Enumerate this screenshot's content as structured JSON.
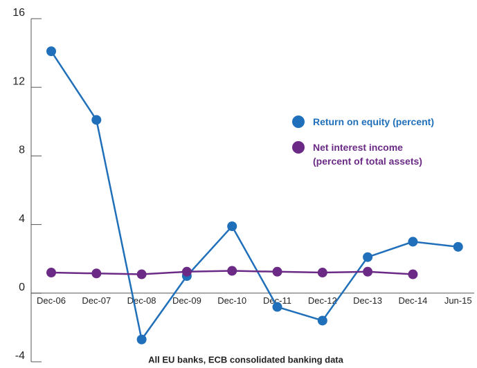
{
  "chart_data": {
    "type": "line",
    "caption": "All EU banks, ECB consolidated banking data",
    "categories": [
      "Dec-06",
      "Dec-07",
      "Dec-08",
      "Dec-09",
      "Dec-10",
      "Dec-11",
      "Dec-12",
      "Dec-13",
      "Dec-14",
      "Jun-15"
    ],
    "series": [
      {
        "name": "Return on equity (percent)",
        "color": "#1f6fba",
        "values": [
          14.1,
          10.1,
          -2.7,
          1.0,
          3.9,
          -0.8,
          -1.6,
          2.1,
          3.0,
          2.7
        ]
      },
      {
        "name": "Net interest income\n(percent of total assets)",
        "color": "#6a2a85",
        "values": [
          1.2,
          1.15,
          1.1,
          1.25,
          1.3,
          1.25,
          1.2,
          1.25,
          1.1,
          null
        ]
      }
    ],
    "ylim": [
      -4,
      16
    ],
    "yticks": [
      -4,
      0,
      4,
      8,
      12,
      16
    ]
  }
}
